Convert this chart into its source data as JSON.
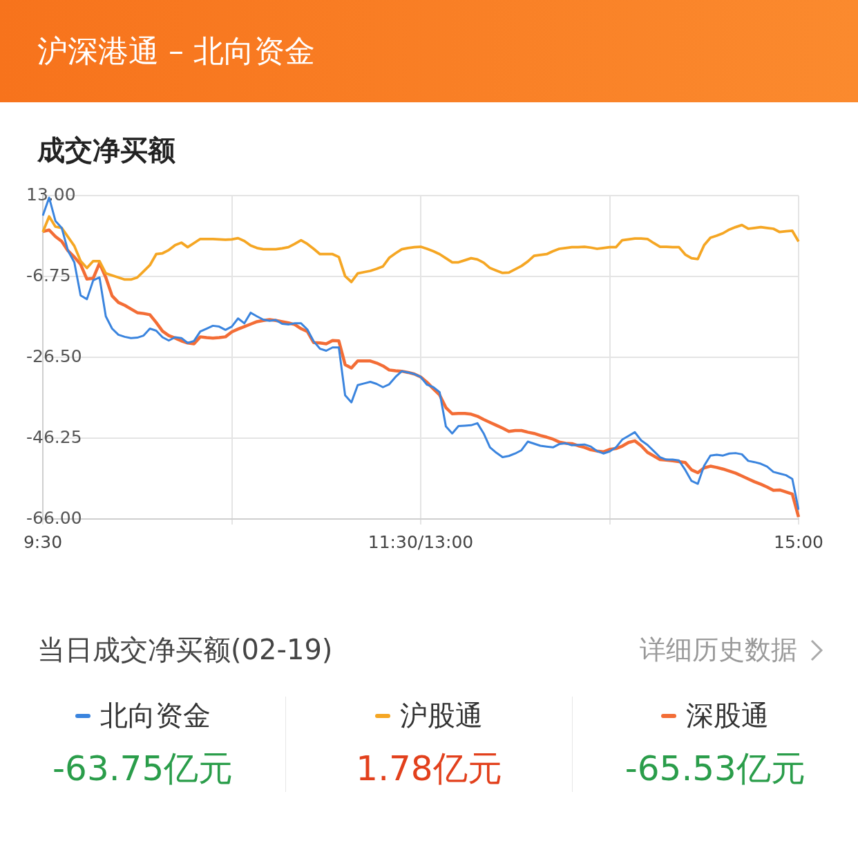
{
  "chart_data": {
    "type": "line",
    "title": "沪深港通 – 北向资金",
    "subtitle": "成交净买额",
    "categories": [
      "9:30",
      null,
      null,
      null,
      null,
      null,
      null,
      null,
      null,
      null,
      null,
      null,
      null,
      null,
      null,
      null,
      null,
      null,
      null,
      null,
      null,
      null,
      null,
      null,
      null,
      null,
      null,
      null,
      null,
      null,
      null,
      null,
      null,
      null,
      null,
      null,
      null,
      null,
      null,
      null,
      null,
      null,
      null,
      null,
      null,
      null,
      null,
      null,
      null,
      null,
      null,
      null,
      null,
      null,
      null,
      null,
      null,
      null,
      null,
      null,
      "11:30/13:00",
      null,
      null,
      null,
      null,
      null,
      null,
      null,
      null,
      null,
      null,
      null,
      null,
      null,
      null,
      null,
      null,
      null,
      null,
      null,
      null,
      null,
      null,
      null,
      null,
      null,
      null,
      null,
      null,
      null,
      null,
      null,
      null,
      null,
      null,
      null,
      null,
      null,
      null,
      null,
      null,
      null,
      null,
      null,
      null,
      null,
      null,
      null,
      null,
      null,
      null,
      null,
      null,
      null,
      null,
      null,
      null,
      null,
      null,
      null,
      "15:00"
    ],
    "ylim": [
      -66,
      13
    ],
    "yticks": [
      {
        "value": 13,
        "label": "13.00"
      },
      {
        "value": -6.75,
        "label": "-6.75"
      },
      {
        "value": -26.5,
        "label": "-26.50"
      },
      {
        "value": -46.25,
        "label": "-46.25"
      },
      {
        "value": -66,
        "label": "-66.00"
      }
    ],
    "grid": true,
    "legend": "bottom",
    "line_style": "solid",
    "series": [
      {
        "name": "北向资金",
        "color": "#3a84de",
        "values": [
          8.1,
          12.5,
          6.8,
          5.1,
          -0.5,
          -3.3,
          -11.4,
          -12.3,
          -7.7,
          -7.0,
          -16.5,
          -19.5,
          -21.0,
          -21.5,
          -21.8,
          -21.7,
          -21.2,
          -19.5,
          -20.0,
          -21.6,
          -22.4,
          -21.6,
          -21.8,
          -23.0,
          -22.5,
          -20.2,
          -19.5,
          -18.8,
          -19.0,
          -19.8,
          -19.0,
          -17.0,
          -18.2,
          -15.6,
          -16.5,
          -17.3,
          -17.6,
          -17.4,
          -18.3,
          -18.5,
          -18.2,
          -18.2,
          -19.7,
          -22.6,
          -24.4,
          -24.9,
          -24.1,
          -24.1,
          -35.8,
          -37.5,
          -33.3,
          -32.9,
          -32.5,
          -33.0,
          -33.8,
          -33.1,
          -31.3,
          -29.9,
          -30.2,
          -30.6,
          -31.3,
          -33.2,
          -33.8,
          -35.0,
          -43.4,
          -45.1,
          -43.3,
          -43.2,
          -43.1,
          -42.6,
          -45.1,
          -48.5,
          -49.8,
          -50.9,
          -50.6,
          -50.0,
          -49.2,
          -47.1,
          -47.6,
          -48.1,
          -48.3,
          -48.5,
          -47.7,
          -47.5,
          -48.0,
          -47.9,
          -47.8,
          -48.3,
          -49.4,
          -50.0,
          -49.5,
          -48.5,
          -46.6,
          -45.7,
          -44.8,
          -46.8,
          -47.9,
          -49.4,
          -50.9,
          -51.5,
          -51.5,
          -51.7,
          -54.0,
          -56.7,
          -57.4,
          -53.0,
          -50.5,
          -50.3,
          -50.5,
          -50.0,
          -49.9,
          -50.2,
          -51.8,
          -52.1,
          -52.5,
          -53.2,
          -54.5,
          -54.9,
          -55.3,
          -56.2,
          -63.75
        ]
      },
      {
        "name": "沪股通",
        "color": "#f5a623",
        "values": [
          4.1,
          7.9,
          5.4,
          5.1,
          2.9,
          0.7,
          -3.0,
          -4.7,
          -3.0,
          -3.0,
          -6.0,
          -6.5,
          -7.0,
          -7.5,
          -7.5,
          -7.0,
          -5.5,
          -4.0,
          -1.3,
          -1.1,
          -0.3,
          0.9,
          1.5,
          0.4,
          1.4,
          2.4,
          2.4,
          2.4,
          2.3,
          2.2,
          2.3,
          2.6,
          1.9,
          0.8,
          0.2,
          -0.1,
          -0.1,
          -0.1,
          0.1,
          0.4,
          1.2,
          2.1,
          1.2,
          0.0,
          -1.3,
          -1.3,
          -1.3,
          -2.0,
          -6.7,
          -8.1,
          -6.0,
          -5.7,
          -5.4,
          -4.9,
          -4.3,
          -2.2,
          -1.1,
          -0.1,
          0.2,
          0.4,
          0.5,
          0.0,
          -0.6,
          -1.3,
          -2.3,
          -3.3,
          -3.3,
          -2.8,
          -2.3,
          -2.6,
          -3.4,
          -4.7,
          -5.3,
          -5.9,
          -5.8,
          -5.0,
          -4.2,
          -3.1,
          -1.7,
          -1.5,
          -1.3,
          -0.6,
          0.0,
          0.2,
          0.4,
          0.4,
          0.5,
          0.3,
          0.0,
          0.2,
          0.4,
          0.4,
          2.1,
          2.3,
          2.5,
          2.5,
          2.4,
          1.4,
          0.5,
          0.5,
          0.4,
          0.4,
          -1.4,
          -2.3,
          -2.5,
          0.9,
          2.7,
          3.2,
          3.8,
          4.7,
          5.3,
          5.8,
          4.9,
          5.1,
          5.3,
          5.1,
          4.9,
          4.1,
          4.3,
          4.4,
          1.78
        ]
      },
      {
        "name": "深股通",
        "color": "#f36d36",
        "values": [
          4.2,
          4.6,
          3.0,
          1.8,
          -0.5,
          -2.0,
          -3.8,
          -7.4,
          -7.2,
          -3.5,
          -7.0,
          -11.5,
          -13.1,
          -13.8,
          -14.7,
          -15.6,
          -15.8,
          -16.1,
          -18.0,
          -20.1,
          -21.2,
          -21.8,
          -22.5,
          -23.0,
          -23.2,
          -21.5,
          -21.7,
          -21.8,
          -21.7,
          -21.5,
          -20.3,
          -19.6,
          -19.0,
          -18.4,
          -17.8,
          -17.5,
          -17.3,
          -17.5,
          -17.8,
          -18.1,
          -18.5,
          -19.5,
          -20.2,
          -22.9,
          -23.0,
          -23.2,
          -22.4,
          -22.5,
          -28.3,
          -29.1,
          -27.4,
          -27.4,
          -27.4,
          -27.9,
          -28.6,
          -29.6,
          -29.8,
          -29.9,
          -30.2,
          -30.6,
          -31.3,
          -32.6,
          -34.2,
          -35.7,
          -38.8,
          -40.3,
          -40.2,
          -40.2,
          -40.4,
          -40.9,
          -41.7,
          -42.4,
          -43.1,
          -43.8,
          -44.6,
          -44.4,
          -44.4,
          -44.8,
          -45.1,
          -45.6,
          -46.0,
          -46.5,
          -47.2,
          -47.5,
          -47.6,
          -48.1,
          -48.5,
          -49.1,
          -49.4,
          -49.6,
          -49.0,
          -48.8,
          -48.2,
          -47.3,
          -46.9,
          -48.1,
          -49.7,
          -50.6,
          -51.5,
          -51.6,
          -51.8,
          -52.0,
          -52.2,
          -54.0,
          -54.7,
          -53.5,
          -53.1,
          -53.4,
          -53.8,
          -54.3,
          -54.8,
          -55.5,
          -56.2,
          -56.9,
          -57.5,
          -58.2,
          -59.0,
          -58.9,
          -59.4,
          -59.9,
          -65.53
        ]
      }
    ],
    "annotations": [
      "当日成交净买额(02-19)",
      "详细历史数据",
      "-63.75亿元",
      "1.78亿元",
      "-65.53亿元"
    ]
  }
}
